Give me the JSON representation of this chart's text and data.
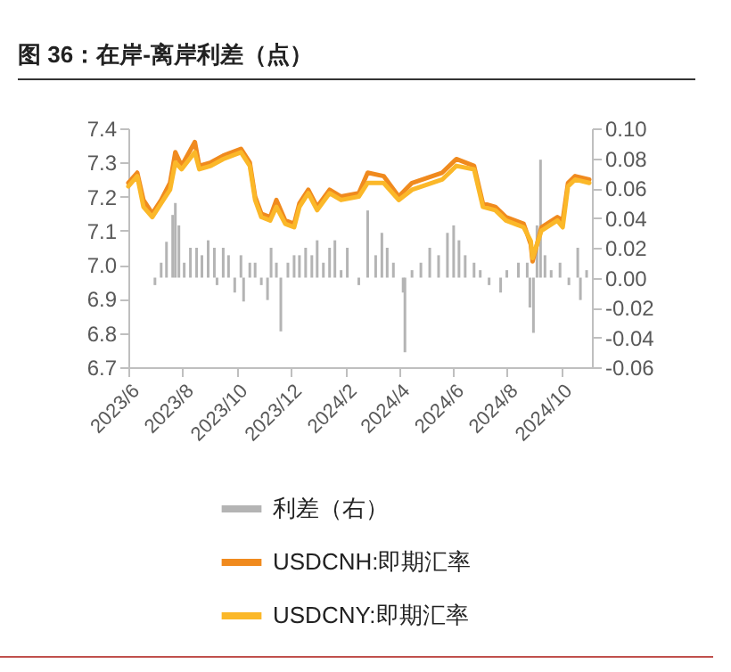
{
  "chart_data": {
    "type": "line",
    "title": "图 36：在岸-离岸利差（点）",
    "x": [
      "2023-06-01",
      "2023-06-11",
      "2023-06-18",
      "2023-06-28",
      "2023-07-08",
      "2023-07-18",
      "2023-07-24",
      "2023-07-31",
      "2023-08-15",
      "2023-08-20",
      "2023-09-02",
      "2023-09-16",
      "2023-10-06",
      "2023-10-16",
      "2023-10-22",
      "2023-10-29",
      "2023-11-08",
      "2023-11-15",
      "2023-11-25",
      "2023-12-05",
      "2023-12-11",
      "2023-12-21",
      "2023-12-31",
      "2024-01-14",
      "2024-01-27",
      "2024-02-16",
      "2024-02-26",
      "2024-03-15",
      "2024-04-01",
      "2024-04-16",
      "2024-05-20",
      "2024-06-05",
      "2024-06-25",
      "2024-07-05",
      "2024-07-19",
      "2024-07-31",
      "2024-08-20",
      "2024-08-28",
      "2024-08-30",
      "2024-09-09",
      "2024-09-27",
      "2024-10-03",
      "2024-10-09",
      "2024-10-17",
      "2024-11-02"
    ],
    "series": [
      {
        "name": "利差（右）",
        "type": "bar",
        "axis": "y2",
        "color": "#b4b4b4",
        "x": [
          "2023-07-01",
          "2023-07-08",
          "2023-07-14",
          "2023-07-21",
          "2023-07-24",
          "2023-07-28",
          "2023-08-03",
          "2023-08-10",
          "2023-08-17",
          "2023-08-23",
          "2023-08-30",
          "2023-09-06",
          "2023-09-09",
          "2023-09-16",
          "2023-09-22",
          "2023-09-29",
          "2023-10-06",
          "2023-10-09",
          "2023-10-16",
          "2023-10-22",
          "2023-10-29",
          "2023-11-05",
          "2023-11-09",
          "2023-11-15",
          "2023-11-20",
          "2023-11-28",
          "2023-12-05",
          "2023-12-11",
          "2023-12-18",
          "2023-12-25",
          "2023-12-31",
          "2024-01-07",
          "2024-01-14",
          "2024-01-20",
          "2024-01-27",
          "2024-02-03",
          "2024-02-16",
          "2024-02-26",
          "2024-03-06",
          "2024-03-13",
          "2024-03-19",
          "2024-03-26",
          "2024-04-06",
          "2024-04-08",
          "2024-04-16",
          "2024-04-26",
          "2024-05-06",
          "2024-05-16",
          "2024-05-26",
          "2024-06-02",
          "2024-06-08",
          "2024-06-15",
          "2024-06-25",
          "2024-07-02",
          "2024-07-12",
          "2024-07-25",
          "2024-08-01",
          "2024-08-14",
          "2024-08-24",
          "2024-08-27",
          "2024-08-31",
          "2024-09-04",
          "2024-09-08",
          "2024-09-13",
          "2024-09-20",
          "2024-09-30",
          "2024-10-10",
          "2024-10-20",
          "2024-10-23",
          "2024-10-30"
        ],
        "values": [
          -0.005,
          0.01,
          0.024,
          0.042,
          0.05,
          0.035,
          0.01,
          0.02,
          0.02,
          0.015,
          0.025,
          0.02,
          -0.005,
          0.02,
          0.015,
          -0.01,
          0.015,
          -0.016,
          0.01,
          0.01,
          -0.005,
          -0.015,
          0.02,
          0.01,
          -0.036,
          0.01,
          0.015,
          0.015,
          0.02,
          0.015,
          0.025,
          0.01,
          0.02,
          0.025,
          0.005,
          0.02,
          -0.005,
          0.045,
          0.015,
          0.03,
          0.02,
          0.01,
          -0.01,
          -0.05,
          0.005,
          0.01,
          0.02,
          0.015,
          0.03,
          0.035,
          0.025,
          0.015,
          0.01,
          0.005,
          -0.005,
          -0.01,
          0.005,
          0.01,
          0.01,
          -0.02,
          -0.037,
          0.035,
          0.079,
          0.015,
          0.005,
          0.01,
          -0.005,
          0.02,
          -0.015,
          0.005
        ]
      },
      {
        "name": "USDCNH:即期汇率",
        "type": "line",
        "color": "#f08a1e",
        "values": [
          7.24,
          7.27,
          7.19,
          7.15,
          7.19,
          7.24,
          7.33,
          7.29,
          7.36,
          7.29,
          7.3,
          7.32,
          7.34,
          7.3,
          7.2,
          7.15,
          7.14,
          7.19,
          7.13,
          7.12,
          7.18,
          7.22,
          7.17,
          7.22,
          7.2,
          7.21,
          7.27,
          7.26,
          7.2,
          7.24,
          7.27,
          7.31,
          7.29,
          7.18,
          7.17,
          7.14,
          7.12,
          7.06,
          7.01,
          7.11,
          7.14,
          7.13,
          7.24,
          7.26,
          7.25
        ]
      },
      {
        "name": "USDCNY:即期汇率",
        "type": "line",
        "color": "#fbb829",
        "values": [
          7.23,
          7.26,
          7.17,
          7.14,
          7.18,
          7.22,
          7.3,
          7.28,
          7.33,
          7.28,
          7.29,
          7.31,
          7.33,
          7.29,
          7.19,
          7.14,
          7.13,
          7.17,
          7.12,
          7.11,
          7.17,
          7.21,
          7.16,
          7.21,
          7.19,
          7.2,
          7.24,
          7.24,
          7.19,
          7.22,
          7.25,
          7.29,
          7.28,
          7.17,
          7.16,
          7.13,
          7.11,
          7.07,
          7.02,
          7.1,
          7.13,
          7.11,
          7.23,
          7.25,
          7.24
        ]
      }
    ],
    "xlim": [
      "2023-06-01",
      "2024-11-05"
    ],
    "xticks": [
      {
        "value": "2023-06",
        "label": "2023/6"
      },
      {
        "value": "2023-08",
        "label": "2023/8"
      },
      {
        "value": "2023-10",
        "label": "2023/10"
      },
      {
        "value": "2023-12",
        "label": "2023/12"
      },
      {
        "value": "2024-02",
        "label": "2024/2"
      },
      {
        "value": "2024-04",
        "label": "2024/4"
      },
      {
        "value": "2024-06",
        "label": "2024/6"
      },
      {
        "value": "2024-08",
        "label": "2024/8"
      },
      {
        "value": "2024-10",
        "label": "2024/10"
      }
    ],
    "ylim": [
      6.7,
      7.4
    ],
    "yticks": [
      6.7,
      6.8,
      6.9,
      {
        "value": 7,
        "label": "7.0"
      },
      7.1,
      7.2,
      7.3,
      7.4
    ],
    "y2lim": [
      -0.06,
      0.1
    ],
    "y2ticks": [
      -0.06,
      -0.04,
      -0.02,
      {
        "value": 0,
        "label": "0.00"
      },
      0.02,
      0.04,
      0.06,
      0.08,
      {
        "value": 0.1,
        "label": "0.10"
      }
    ],
    "grid": false,
    "legend": "bottom"
  }
}
